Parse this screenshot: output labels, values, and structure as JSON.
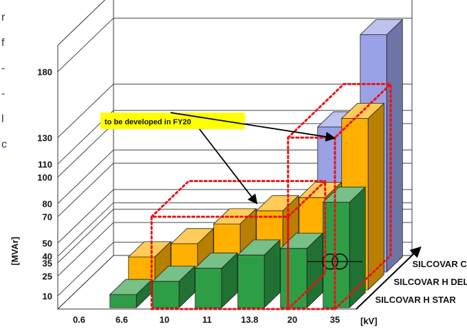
{
  "chart_data": {
    "type": "bar",
    "title": "",
    "ylabel": "[MVAr]",
    "xlabel": "[kV]",
    "ylim": [
      0,
      200
    ],
    "ytick_labels": [
      "10",
      "25",
      "35",
      "40",
      "50",
      "70",
      "80",
      "100",
      "110",
      "130",
      "180"
    ],
    "categories": [
      "0.6",
      "6.6",
      "10",
      "11",
      "13.8",
      "20",
      "35"
    ],
    "series": [
      {
        "name": "SILCOVAR H STAR",
        "values": [
          null,
          10,
          20,
          30,
          40,
          45,
          80
        ],
        "color": "#2e9e46"
      },
      {
        "name": "SILCOVAR H DELTA",
        "values": [
          null,
          25,
          35,
          50,
          60,
          70,
          130
        ],
        "color": "#ffb000"
      },
      {
        "name": "SILCOVAR C",
        "values": [
          null,
          null,
          null,
          null,
          null,
          110,
          180
        ],
        "color": "#9aa1e6"
      }
    ],
    "annotation": "to be developed in FY20",
    "legend": "right, along depth axis",
    "grid": true,
    "left_edge_text": [
      "r",
      "f",
      "-",
      "-",
      "l",
      "c"
    ]
  }
}
